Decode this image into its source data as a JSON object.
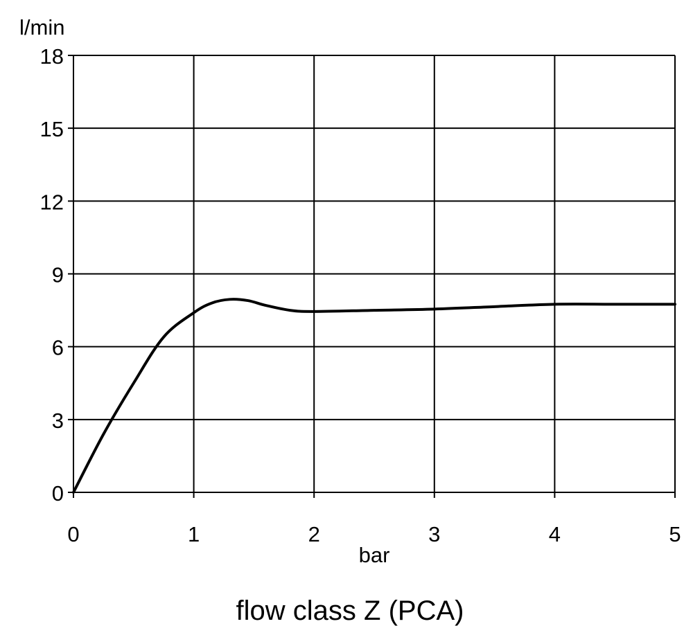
{
  "chart_data": {
    "type": "line",
    "caption": "flow class Z (PCA)",
    "xlabel": "bar",
    "ylabel": "l/min",
    "xlim": [
      0,
      5
    ],
    "ylim": [
      0,
      18
    ],
    "x_ticks": [
      "0",
      "1",
      "2",
      "3",
      "4",
      "5"
    ],
    "y_ticks": [
      "0",
      "3",
      "6",
      "9",
      "12",
      "15",
      "18"
    ],
    "grid": true,
    "legend": "none",
    "series": [
      {
        "x": [
          0,
          0.25,
          0.5,
          0.75,
          1.0,
          1.15,
          1.3,
          1.45,
          1.6,
          1.8,
          2.0,
          2.5,
          3.0,
          3.5,
          4.0,
          4.5,
          5.0
        ],
        "y": [
          0,
          2.4,
          4.5,
          6.4,
          7.4,
          7.8,
          7.95,
          7.9,
          7.7,
          7.5,
          7.45,
          7.5,
          7.55,
          7.65,
          7.75,
          7.75,
          7.75
        ]
      }
    ]
  }
}
